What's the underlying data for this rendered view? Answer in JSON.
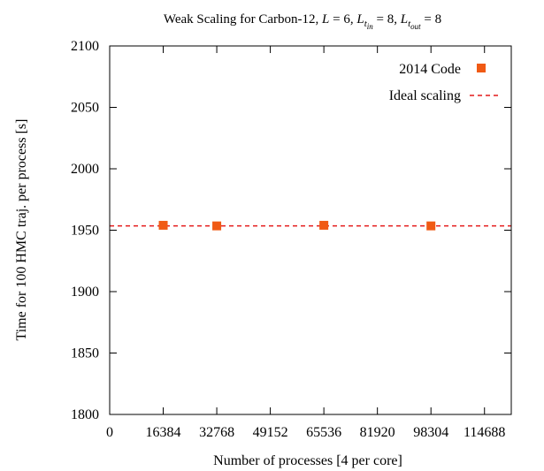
{
  "chart_data": {
    "type": "scatter",
    "title": {
      "prefix": "Weak Scaling for Carbon-12, ",
      "L_symbol": "L",
      "L_value": " = 6, ",
      "Lt_symbol": "L",
      "Lt_sub": "t",
      "Lt_in_subsub": "in",
      "Lt_in_value": " = 8, ",
      "Lt_out_subsub": "out",
      "Lt_out_value": " = 8"
    },
    "xlabel": "Number of processes [4 per core]",
    "ylabel": "Time for 100 HMC traj. per process [s]",
    "xlim": [
      0,
      122880
    ],
    "ylim": [
      1800,
      2100
    ],
    "xticks": [
      0,
      16384,
      32768,
      49152,
      65536,
      81920,
      98304,
      114688
    ],
    "xtick_labels": [
      "0",
      "16384",
      "32768",
      "49152",
      "65536",
      "81920",
      "98304",
      "114688"
    ],
    "yticks": [
      1800,
      1850,
      1900,
      1950,
      2000,
      2050,
      2100
    ],
    "ytick_labels": [
      "1800",
      "1850",
      "1900",
      "1950",
      "2000",
      "2050",
      "2100"
    ],
    "legend_position": "top-right",
    "series": [
      {
        "name": "2014 Code",
        "kind": "points",
        "color": "#f05a14",
        "x": [
          16384,
          32768,
          65536,
          98304
        ],
        "y": [
          1954,
          1953.5,
          1954,
          1953.5
        ]
      },
      {
        "name": "Ideal scaling",
        "kind": "dashed-line",
        "color": "#e41a1a",
        "y": 1953.5
      }
    ]
  }
}
